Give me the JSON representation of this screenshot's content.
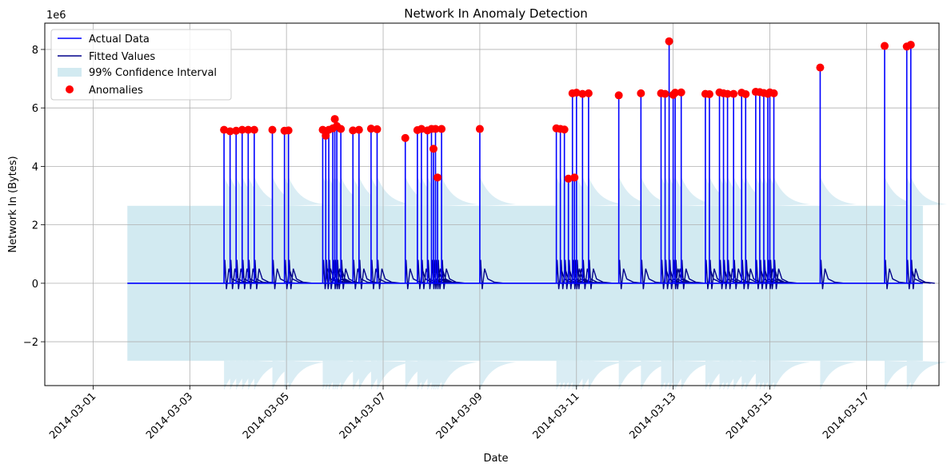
{
  "chart_data": {
    "type": "line",
    "title": "Network In Anomaly Detection",
    "xlabel": "Date",
    "ylabel": "Network In (Bytes)",
    "y_scale_label": "1e6",
    "xlim": [
      "2014-02-28T00:00",
      "2014-03-18T12:00"
    ],
    "ylim": [
      -3500000,
      8900000
    ],
    "x_ticks": [
      "2014-03-01",
      "2014-03-03",
      "2014-03-05",
      "2014-03-07",
      "2014-03-09",
      "2014-03-11",
      "2014-03-13",
      "2014-03-15",
      "2014-03-17"
    ],
    "y_ticks": [
      -2000000,
      0,
      2000000,
      4000000,
      6000000,
      8000000
    ],
    "y_tick_labels": [
      "−2",
      "0",
      "2",
      "4",
      "6",
      "8"
    ],
    "grid": true,
    "legend_position": "top-left",
    "colors": {
      "actual": "#0000ff",
      "fitted": "#00008b",
      "band": "#add8e6",
      "anomaly": "#ff0000"
    },
    "series": [
      {
        "name": "Actual Data",
        "kind": "line"
      },
      {
        "name": "Fitted Values",
        "kind": "line"
      },
      {
        "name": "99% Confidence Interval",
        "kind": "band"
      },
      {
        "name": "Anomalies",
        "kind": "scatter"
      }
    ],
    "confidence_interval": {
      "start": "2014-03-01T17:00",
      "end": "2014-03-18T04:00",
      "half_width": 2650000
    },
    "anomalies": [
      [
        "2014-03-03T17:00",
        5250000
      ],
      [
        "2014-03-03T20:00",
        5200000
      ],
      [
        "2014-03-03T23:00",
        5220000
      ],
      [
        "2014-03-04T02:00",
        5250000
      ],
      [
        "2014-03-04T05:00",
        5250000
      ],
      [
        "2014-03-04T08:00",
        5250000
      ],
      [
        "2014-03-04T17:00",
        5250000
      ],
      [
        "2014-03-04T23:00",
        5220000
      ],
      [
        "2014-03-05T01:00",
        5230000
      ],
      [
        "2014-03-05T18:00",
        5250000
      ],
      [
        "2014-03-05T19:30",
        5050000
      ],
      [
        "2014-03-05T21:00",
        5250000
      ],
      [
        "2014-03-05T23:00",
        5300000
      ],
      [
        "2014-03-06T00:00",
        5620000
      ],
      [
        "2014-03-06T01:00",
        5380000
      ],
      [
        "2014-03-06T03:00",
        5280000
      ],
      [
        "2014-03-06T09:00",
        5230000
      ],
      [
        "2014-03-06T12:00",
        5250000
      ],
      [
        "2014-03-06T18:00",
        5290000
      ],
      [
        "2014-03-06T21:00",
        5270000
      ],
      [
        "2014-03-07T11:00",
        4970000
      ],
      [
        "2014-03-07T17:00",
        5240000
      ],
      [
        "2014-03-07T19:00",
        5280000
      ],
      [
        "2014-03-07T22:00",
        5230000
      ],
      [
        "2014-03-08T00:00",
        5280000
      ],
      [
        "2014-03-08T01:00",
        4600000
      ],
      [
        "2014-03-08T02:00",
        5280000
      ],
      [
        "2014-03-08T03:00",
        3620000
      ],
      [
        "2014-03-08T05:00",
        5280000
      ],
      [
        "2014-03-09T00:00",
        5280000
      ],
      [
        "2014-03-10T14:00",
        5300000
      ],
      [
        "2014-03-10T16:00",
        5280000
      ],
      [
        "2014-03-10T18:00",
        5260000
      ],
      [
        "2014-03-10T20:00",
        3580000
      ],
      [
        "2014-03-10T22:00",
        6500000
      ],
      [
        "2014-03-10T23:00",
        3620000
      ],
      [
        "2014-03-11T00:00",
        6520000
      ],
      [
        "2014-03-11T03:00",
        6480000
      ],
      [
        "2014-03-11T06:00",
        6500000
      ],
      [
        "2014-03-11T21:00",
        6430000
      ],
      [
        "2014-03-12T08:00",
        6500000
      ],
      [
        "2014-03-12T18:00",
        6500000
      ],
      [
        "2014-03-12T20:00",
        6480000
      ],
      [
        "2014-03-12T22:00",
        8280000
      ],
      [
        "2014-03-13T00:00",
        6450000
      ],
      [
        "2014-03-13T01:00",
        6520000
      ],
      [
        "2014-03-13T04:00",
        6530000
      ],
      [
        "2014-03-13T16:00",
        6480000
      ],
      [
        "2014-03-13T18:00",
        6470000
      ],
      [
        "2014-03-13T23:00",
        6530000
      ],
      [
        "2014-03-14T01:00",
        6500000
      ],
      [
        "2014-03-14T03:00",
        6480000
      ],
      [
        "2014-03-14T06:00",
        6480000
      ],
      [
        "2014-03-14T10:00",
        6520000
      ],
      [
        "2014-03-14T12:00",
        6470000
      ],
      [
        "2014-03-14T17:00",
        6550000
      ],
      [
        "2014-03-14T19:00",
        6540000
      ],
      [
        "2014-03-14T21:00",
        6510000
      ],
      [
        "2014-03-14T23:00",
        6480000
      ],
      [
        "2014-03-15T00:00",
        6530000
      ],
      [
        "2014-03-15T02:00",
        6500000
      ],
      [
        "2014-03-16T01:00",
        7380000
      ],
      [
        "2014-03-17T09:00",
        8120000
      ],
      [
        "2014-03-17T20:00",
        8100000
      ],
      [
        "2014-03-17T22:00",
        8160000
      ]
    ]
  }
}
